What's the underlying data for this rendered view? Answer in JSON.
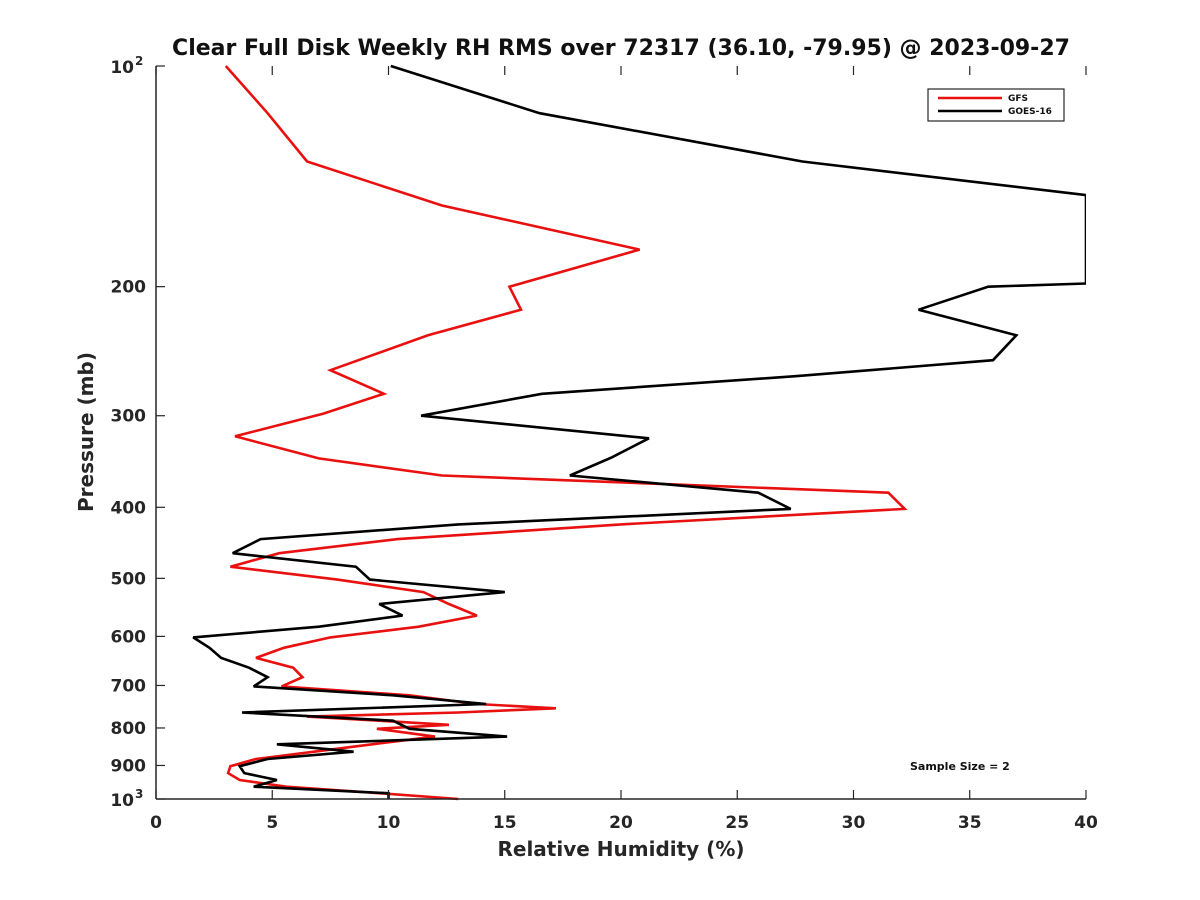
{
  "chart_data": {
    "type": "line",
    "title": "Clear Full Disk Weekly RH RMS over 72317 (36.10, -79.95) @ 2023-09-27",
    "xlabel": "Relative Humidity (%)",
    "ylabel": "Pressure (mb)",
    "xlim": [
      0,
      40
    ],
    "ylim": [
      100,
      1000
    ],
    "y_scale": "log",
    "y_reversed": true,
    "x_ticks": [
      0,
      5,
      10,
      15,
      20,
      25,
      30,
      35,
      40
    ],
    "y_ticks": [
      {
        "value": 100,
        "base": "10",
        "exp": "2"
      },
      {
        "value": 200,
        "label": "200"
      },
      {
        "value": 300,
        "label": "300"
      },
      {
        "value": 400,
        "label": "400"
      },
      {
        "value": 500,
        "label": "500"
      },
      {
        "value": 600,
        "label": "600"
      },
      {
        "value": 700,
        "label": "700"
      },
      {
        "value": 800,
        "label": "800"
      },
      {
        "value": 900,
        "label": "900"
      },
      {
        "value": 1000,
        "base": "10",
        "exp": "3"
      }
    ],
    "grid": false,
    "legend_position": "top-right",
    "annotation": "Sample Size = 2",
    "series": [
      {
        "name": "GFS",
        "color": "#e8110f",
        "points": [
          [
            3.0,
            100
          ],
          [
            4.8,
            116
          ],
          [
            6.5,
            135
          ],
          [
            12.3,
            155
          ],
          [
            20.8,
            178
          ],
          [
            15.2,
            200
          ],
          [
            15.7,
            215
          ],
          [
            11.7,
            233
          ],
          [
            7.5,
            260
          ],
          [
            9.8,
            280
          ],
          [
            7.2,
            298
          ],
          [
            3.4,
            320
          ],
          [
            7.0,
            343
          ],
          [
            12.3,
            362
          ],
          [
            31.5,
            382
          ],
          [
            32.2,
            402
          ],
          [
            20.0,
            422
          ],
          [
            10.4,
            442
          ],
          [
            5.3,
            462
          ],
          [
            3.2,
            482
          ],
          [
            7.8,
            502
          ],
          [
            11.5,
            522
          ],
          [
            12.6,
            542
          ],
          [
            13.8,
            562
          ],
          [
            11.3,
            582
          ],
          [
            7.5,
            602
          ],
          [
            5.5,
            622
          ],
          [
            4.3,
            642
          ],
          [
            5.9,
            662
          ],
          [
            6.3,
            682
          ],
          [
            5.4,
            702
          ],
          [
            10.9,
            722
          ],
          [
            13.8,
            742
          ],
          [
            17.2,
            752
          ],
          [
            13.0,
            762
          ],
          [
            6.5,
            772
          ],
          [
            9.6,
            782
          ],
          [
            12.6,
            792
          ],
          [
            9.5,
            802
          ],
          [
            12.0,
            822
          ],
          [
            9.3,
            842
          ],
          [
            6.8,
            862
          ],
          [
            4.3,
            882
          ],
          [
            3.2,
            902
          ],
          [
            3.1,
            922
          ],
          [
            3.6,
            942
          ],
          [
            5.6,
            962
          ],
          [
            9.6,
            982
          ],
          [
            13.0,
            1000
          ]
        ]
      },
      {
        "name": "GOES-16",
        "color": "#000000",
        "points": [
          [
            10.1,
            100
          ],
          [
            16.5,
            116
          ],
          [
            27.8,
            135
          ],
          [
            40.0,
            150
          ],
          [
            40.0,
            198
          ],
          [
            35.8,
            200
          ],
          [
            32.8,
            215
          ],
          [
            37.0,
            233
          ],
          [
            36.0,
            252
          ],
          [
            27.5,
            265
          ],
          [
            16.6,
            280
          ],
          [
            11.4,
            300
          ],
          [
            21.2,
            322
          ],
          [
            19.6,
            342
          ],
          [
            17.8,
            362
          ],
          [
            25.9,
            382
          ],
          [
            27.3,
            402
          ],
          [
            13.0,
            422
          ],
          [
            4.5,
            442
          ],
          [
            3.3,
            462
          ],
          [
            8.6,
            482
          ],
          [
            9.2,
            502
          ],
          [
            15.0,
            522
          ],
          [
            9.6,
            542
          ],
          [
            10.6,
            562
          ],
          [
            7.0,
            582
          ],
          [
            1.6,
            602
          ],
          [
            2.3,
            622
          ],
          [
            2.8,
            642
          ],
          [
            4.0,
            662
          ],
          [
            4.8,
            682
          ],
          [
            4.2,
            702
          ],
          [
            10.2,
            722
          ],
          [
            14.2,
            742
          ],
          [
            3.7,
            762
          ],
          [
            10.2,
            782
          ],
          [
            10.9,
            802
          ],
          [
            15.1,
            822
          ],
          [
            5.2,
            842
          ],
          [
            8.5,
            862
          ],
          [
            4.8,
            882
          ],
          [
            3.6,
            902
          ],
          [
            3.8,
            922
          ],
          [
            5.2,
            942
          ],
          [
            4.2,
            962
          ],
          [
            10.0,
            982
          ],
          [
            10.0,
            1000
          ]
        ]
      }
    ]
  }
}
